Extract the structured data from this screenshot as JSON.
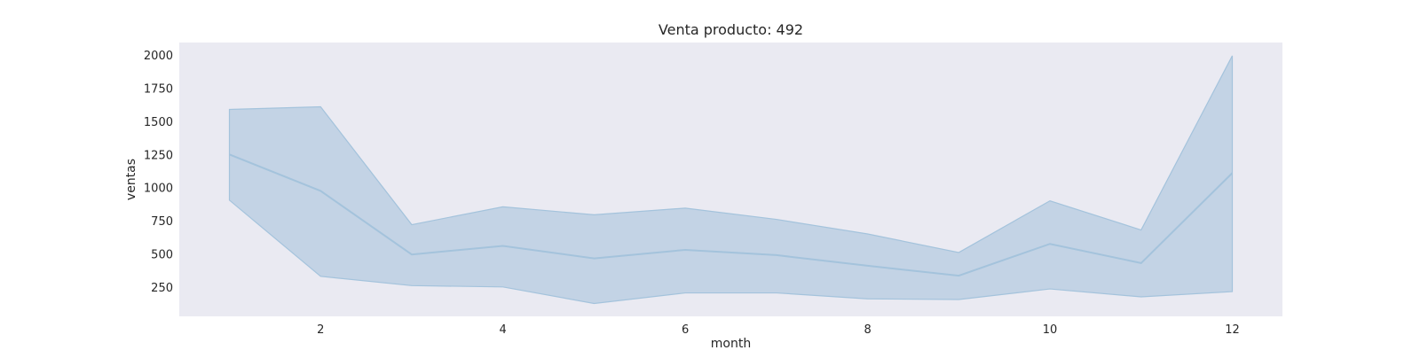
{
  "chart_data": {
    "type": "area",
    "title": "Venta producto: 492",
    "xlabel": "month",
    "ylabel": "ventas",
    "xlim": [
      0.45,
      12.55
    ],
    "ylim": [
      28,
      2095
    ],
    "x_ticks": [
      2,
      4,
      6,
      8,
      10,
      12
    ],
    "y_ticks": [
      250,
      500,
      750,
      1000,
      1250,
      1500,
      1750,
      2000
    ],
    "grid": false,
    "x": [
      1,
      2,
      3,
      4,
      5,
      6,
      7,
      8,
      9,
      10,
      11,
      12
    ],
    "series": [
      {
        "values": [
          1250,
          975,
          495,
          560,
          465,
          530,
          490,
          410,
          335,
          575,
          430,
          1110
        ],
        "band_lower": [
          905,
          330,
          260,
          250,
          125,
          205,
          205,
          160,
          155,
          235,
          175,
          215
        ],
        "band_upper": [
          1590,
          1610,
          720,
          855,
          795,
          845,
          760,
          650,
          510,
          900,
          680,
          1995
        ]
      }
    ],
    "colors": {
      "plot_background": "#eaeaf2",
      "line": "#a4c3dc",
      "band_fill": "#a8c3dc",
      "band_stroke": "#a4c3dc"
    }
  }
}
